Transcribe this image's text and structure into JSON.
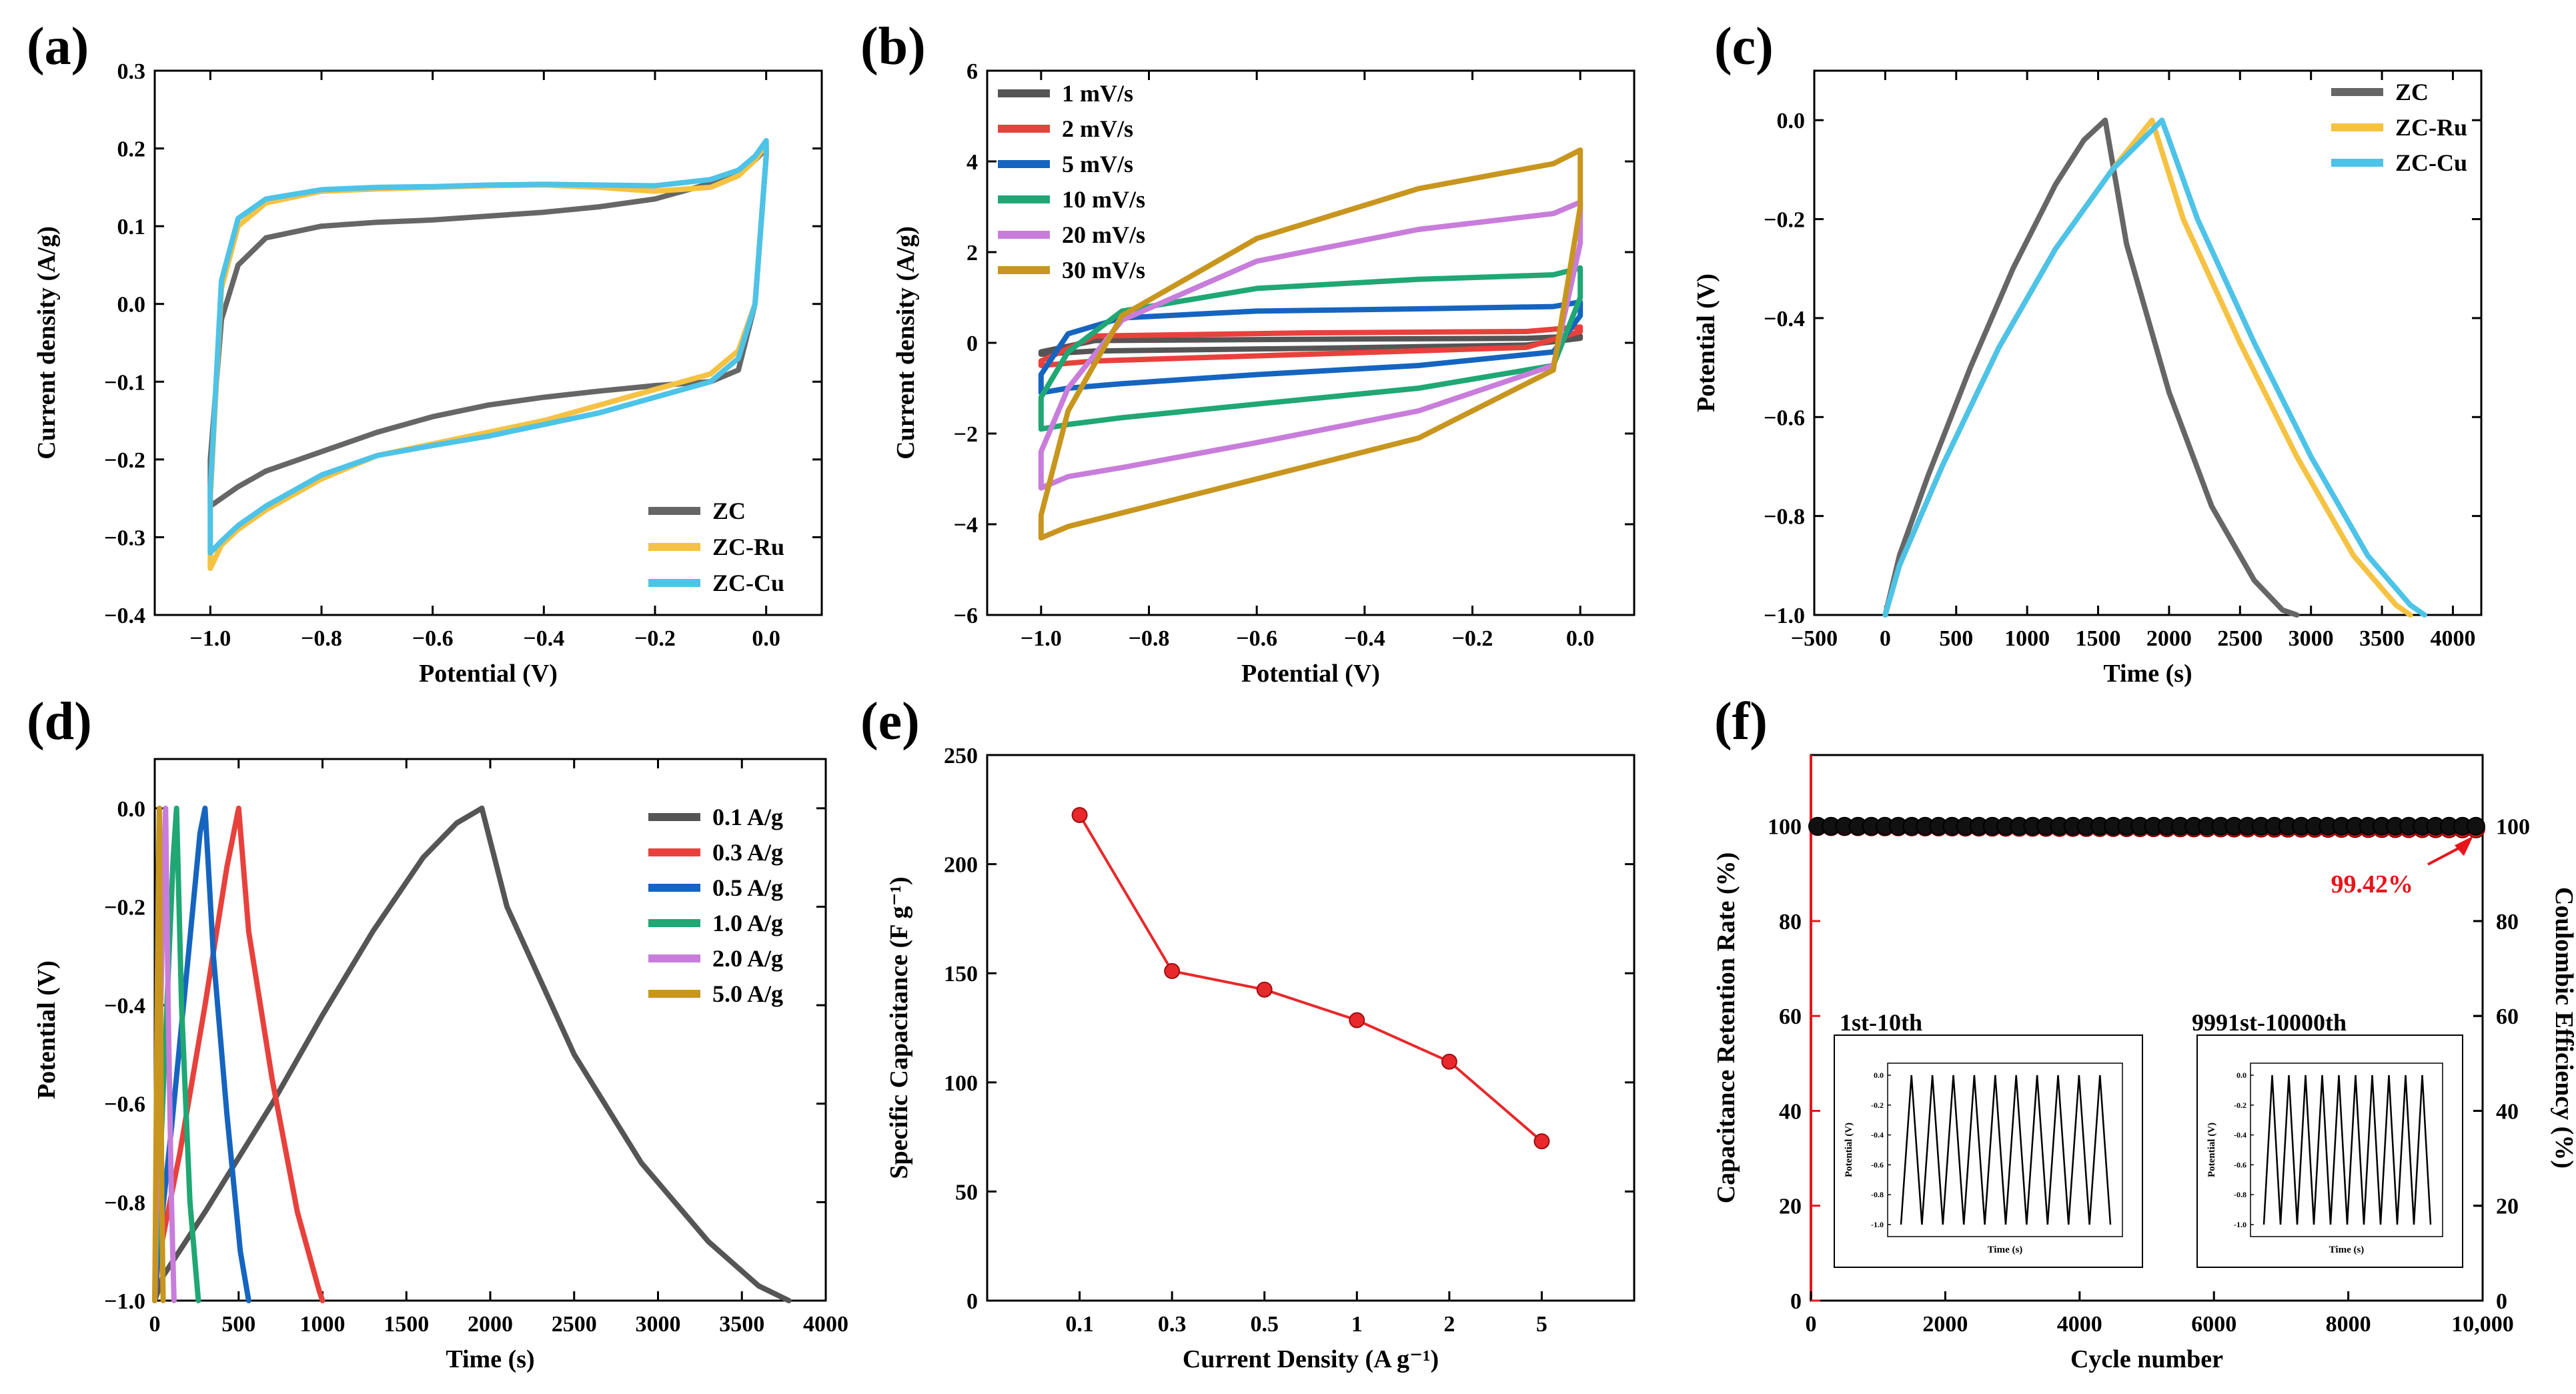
{
  "chart_data": [
    {
      "panel": "(a)",
      "type": "line",
      "xlabel": "Potential (V)",
      "ylabel": "Current density (A/g)",
      "xlim": [
        -1.1,
        0.1
      ],
      "ylim": [
        -0.4,
        0.3
      ],
      "xticks": [
        -1.0,
        -0.8,
        -0.6,
        -0.4,
        -0.2,
        0.0
      ],
      "xtick_labels": [
        "−1.0",
        "−0.8",
        "−0.6",
        "−0.4",
        "−0.2",
        "0.0"
      ],
      "yticks": [
        -0.4,
        -0.3,
        -0.2,
        -0.1,
        0.0,
        0.1,
        0.2,
        0.3
      ],
      "ytick_labels": [
        "−0.4",
        "−0.3",
        "−0.2",
        "−0.1",
        "0.0",
        "0.1",
        "0.2",
        "0.3"
      ],
      "legend_position": "bottom-right",
      "series": [
        {
          "name": "ZC",
          "color": "#666666",
          "x": [
            -1.0,
            -0.98,
            -0.95,
            -0.9,
            -0.8,
            -0.7,
            -0.6,
            -0.5,
            -0.4,
            -0.3,
            -0.2,
            -0.1,
            -0.05,
            -0.02,
            0.0,
            0.0,
            -0.02,
            -0.05,
            -0.1,
            -0.2,
            -0.3,
            -0.4,
            -0.5,
            -0.6,
            -0.7,
            -0.8,
            -0.9,
            -0.95,
            -0.98,
            -1.0,
            -1.0
          ],
          "y": [
            -0.2,
            -0.02,
            0.05,
            0.085,
            0.1,
            0.105,
            0.108,
            0.113,
            0.118,
            0.125,
            0.135,
            0.155,
            0.17,
            0.185,
            0.2,
            0.19,
            0.0,
            -0.085,
            -0.1,
            -0.105,
            -0.112,
            -0.12,
            -0.13,
            -0.145,
            -0.165,
            -0.19,
            -0.215,
            -0.235,
            -0.25,
            -0.26,
            -0.2
          ]
        },
        {
          "name": "ZC-Ru",
          "color": "#F5C242",
          "x": [
            -1.0,
            -0.98,
            -0.95,
            -0.9,
            -0.8,
            -0.7,
            -0.6,
            -0.5,
            -0.4,
            -0.3,
            -0.2,
            -0.1,
            -0.05,
            -0.02,
            0.0,
            0.0,
            -0.02,
            -0.05,
            -0.1,
            -0.2,
            -0.3,
            -0.4,
            -0.5,
            -0.6,
            -0.7,
            -0.8,
            -0.9,
            -0.95,
            -0.98,
            -1.0,
            -1.0
          ],
          "y": [
            -0.25,
            0.02,
            0.1,
            0.13,
            0.145,
            0.148,
            0.15,
            0.152,
            0.153,
            0.15,
            0.145,
            0.15,
            0.165,
            0.185,
            0.205,
            0.19,
            0.0,
            -0.06,
            -0.09,
            -0.11,
            -0.13,
            -0.15,
            -0.165,
            -0.18,
            -0.195,
            -0.225,
            -0.265,
            -0.29,
            -0.31,
            -0.34,
            -0.25
          ]
        },
        {
          "name": "ZC-Cu",
          "color": "#4DC3E8",
          "x": [
            -1.0,
            -0.98,
            -0.95,
            -0.9,
            -0.8,
            -0.7,
            -0.6,
            -0.5,
            -0.4,
            -0.3,
            -0.2,
            -0.1,
            -0.05,
            -0.02,
            0.0,
            0.0,
            -0.02,
            -0.05,
            -0.1,
            -0.2,
            -0.3,
            -0.4,
            -0.5,
            -0.6,
            -0.7,
            -0.8,
            -0.9,
            -0.95,
            -0.98,
            -1.0,
            -1.0
          ],
          "y": [
            -0.24,
            0.03,
            0.11,
            0.135,
            0.147,
            0.15,
            0.151,
            0.153,
            0.154,
            0.153,
            0.152,
            0.16,
            0.172,
            0.19,
            0.21,
            0.19,
            0.0,
            -0.07,
            -0.1,
            -0.12,
            -0.14,
            -0.155,
            -0.17,
            -0.182,
            -0.195,
            -0.22,
            -0.26,
            -0.285,
            -0.305,
            -0.32,
            -0.24
          ]
        }
      ]
    },
    {
      "panel": "(b)",
      "type": "line",
      "xlabel": "Potential (V)",
      "ylabel": "Current density (A/g)",
      "xlim": [
        -1.1,
        0.1
      ],
      "ylim": [
        -6,
        6
      ],
      "xticks": [
        -1.0,
        -0.8,
        -0.6,
        -0.4,
        -0.2,
        0.0
      ],
      "xtick_labels": [
        "−1.0",
        "−0.8",
        "−0.6",
        "−0.4",
        "−0.2",
        "0.0"
      ],
      "yticks": [
        -6,
        -4,
        -2,
        0,
        2,
        4,
        6
      ],
      "ytick_labels": [
        "−6",
        "−4",
        "−2",
        "0",
        "2",
        "4",
        "6"
      ],
      "legend_position": "top-left",
      "series": [
        {
          "name": "1 mV/s",
          "color": "#555555",
          "x": [
            -1.0,
            -0.9,
            -0.5,
            -0.1,
            0.0,
            0.0,
            -0.1,
            -0.5,
            -0.9,
            -1.0,
            -1.0
          ],
          "y": [
            -0.2,
            0.05,
            0.08,
            0.1,
            0.15,
            0.1,
            -0.05,
            -0.12,
            -0.18,
            -0.25,
            -0.2
          ]
        },
        {
          "name": "2 mV/s",
          "color": "#E8413C",
          "x": [
            -1.0,
            -0.9,
            -0.5,
            -0.1,
            0.0,
            0.0,
            -0.1,
            -0.5,
            -0.9,
            -1.0,
            -1.0
          ],
          "y": [
            -0.4,
            0.15,
            0.22,
            0.25,
            0.35,
            0.25,
            -0.1,
            -0.25,
            -0.4,
            -0.5,
            -0.4
          ]
        },
        {
          "name": "5 mV/s",
          "color": "#1565C0",
          "x": [
            -1.0,
            -0.95,
            -0.85,
            -0.6,
            -0.3,
            -0.05,
            0.0,
            0.0,
            -0.05,
            -0.3,
            -0.6,
            -0.85,
            -0.95,
            -1.0,
            -1.0
          ],
          "y": [
            -0.7,
            0.2,
            0.55,
            0.7,
            0.75,
            0.8,
            0.9,
            0.6,
            -0.2,
            -0.5,
            -0.7,
            -0.9,
            -1.0,
            -1.1,
            -0.7
          ]
        },
        {
          "name": "10 mV/s",
          "color": "#1FA774",
          "x": [
            -1.0,
            -0.95,
            -0.85,
            -0.6,
            -0.3,
            -0.05,
            0.0,
            0.0,
            -0.05,
            -0.3,
            -0.6,
            -0.85,
            -0.95,
            -1.0,
            -1.0
          ],
          "y": [
            -1.2,
            -0.2,
            0.7,
            1.2,
            1.4,
            1.5,
            1.65,
            1.0,
            -0.5,
            -1.0,
            -1.35,
            -1.65,
            -1.8,
            -1.9,
            -1.2
          ]
        },
        {
          "name": "20 mV/s",
          "color": "#C87DDB",
          "x": [
            -1.0,
            -0.95,
            -0.85,
            -0.6,
            -0.3,
            -0.05,
            0.0,
            0.0,
            -0.05,
            -0.3,
            -0.6,
            -0.85,
            -0.95,
            -1.0,
            -1.0
          ],
          "y": [
            -2.4,
            -1.0,
            0.5,
            1.8,
            2.5,
            2.85,
            3.1,
            2.2,
            -0.5,
            -1.5,
            -2.2,
            -2.75,
            -2.95,
            -3.2,
            -2.4
          ]
        },
        {
          "name": "30 mV/s",
          "color": "#C8961E",
          "x": [
            -1.0,
            -0.95,
            -0.85,
            -0.6,
            -0.3,
            -0.05,
            0.0,
            0.0,
            -0.05,
            -0.3,
            -0.6,
            -0.85,
            -0.95,
            -1.0,
            -1.0
          ],
          "y": [
            -3.8,
            -1.5,
            0.6,
            2.3,
            3.4,
            3.95,
            4.25,
            3.0,
            -0.6,
            -2.1,
            -3.0,
            -3.75,
            -4.05,
            -4.3,
            -3.8
          ]
        }
      ]
    },
    {
      "panel": "(c)",
      "type": "line",
      "xlabel": "Time (s)",
      "ylabel": "Potential (V)",
      "xlim": [
        -500,
        4200
      ],
      "ylim": [
        -1.0,
        0.1
      ],
      "xticks": [
        -500,
        0,
        500,
        1000,
        1500,
        2000,
        2500,
        3000,
        3500,
        4000
      ],
      "xtick_labels": [
        "−500",
        "0",
        "500",
        "1000",
        "1500",
        "2000",
        "2500",
        "3000",
        "3500",
        "4000"
      ],
      "yticks": [
        -1.0,
        -0.8,
        -0.6,
        -0.4,
        -0.2,
        0.0
      ],
      "ytick_labels": [
        "−1.0",
        "−0.8",
        "−0.6",
        "−0.4",
        "−0.2",
        "0.0"
      ],
      "legend_position": "top-right",
      "series": [
        {
          "name": "ZC",
          "color": "#666666",
          "x": [
            0,
            100,
            300,
            600,
            900,
            1200,
            1400,
            1550,
            1700,
            2000,
            2300,
            2600,
            2800,
            2900
          ],
          "y": [
            -1.0,
            -0.88,
            -0.72,
            -0.5,
            -0.3,
            -0.13,
            -0.04,
            0.0,
            -0.25,
            -0.55,
            -0.78,
            -0.93,
            -0.99,
            -1.0
          ]
        },
        {
          "name": "ZC-Ru",
          "color": "#F5C242",
          "x": [
            0,
            100,
            400,
            800,
            1200,
            1600,
            1880,
            2100,
            2500,
            2900,
            3300,
            3600,
            3700
          ],
          "y": [
            -1.0,
            -0.9,
            -0.7,
            -0.46,
            -0.26,
            -0.1,
            0.0,
            -0.2,
            -0.45,
            -0.68,
            -0.88,
            -0.98,
            -1.0
          ]
        },
        {
          "name": "ZC-Cu",
          "color": "#4DC3E8",
          "x": [
            0,
            100,
            400,
            800,
            1200,
            1600,
            1950,
            2200,
            2600,
            3000,
            3400,
            3700,
            3800
          ],
          "y": [
            -1.0,
            -0.9,
            -0.7,
            -0.46,
            -0.26,
            -0.1,
            0.0,
            -0.2,
            -0.45,
            -0.68,
            -0.88,
            -0.98,
            -1.0
          ]
        }
      ]
    },
    {
      "panel": "(d)",
      "type": "line",
      "xlabel": "Time (s)",
      "ylabel": "Potential (V)",
      "xlim": [
        0,
        4000
      ],
      "ylim": [
        -1.0,
        0.1
      ],
      "xticks": [
        0,
        500,
        1000,
        1500,
        2000,
        2500,
        3000,
        3500,
        4000
      ],
      "xtick_labels": [
        "0",
        "500",
        "1000",
        "1500",
        "2000",
        "2500",
        "3000",
        "3500",
        "4000"
      ],
      "yticks": [
        -1.0,
        -0.8,
        -0.6,
        -0.4,
        -0.2,
        0.0
      ],
      "ytick_labels": [
        "−1.0",
        "−0.8",
        "−0.6",
        "−0.4",
        "−0.2",
        "0.0"
      ],
      "legend_position": "top-right",
      "series": [
        {
          "name": "0.1 A/g",
          "color": "#555555",
          "x": [
            0,
            50,
            300,
            700,
            1000,
            1300,
            1600,
            1800,
            1950,
            2100,
            2500,
            2900,
            3300,
            3600,
            3780
          ],
          "y": [
            -1.0,
            -0.95,
            -0.82,
            -0.6,
            -0.42,
            -0.25,
            -0.1,
            -0.03,
            0.0,
            -0.2,
            -0.5,
            -0.72,
            -0.88,
            -0.97,
            -1.0
          ]
        },
        {
          "name": "0.3 A/g",
          "color": "#E8413C",
          "x": [
            0,
            20,
            150,
            300,
            430,
            500,
            560,
            700,
            850,
            980,
            1000
          ],
          "y": [
            -1.0,
            -0.92,
            -0.7,
            -0.4,
            -0.12,
            0.0,
            -0.25,
            -0.55,
            -0.82,
            -0.98,
            -1.0
          ]
        },
        {
          "name": "0.5 A/g",
          "color": "#1565C0",
          "x": [
            0,
            15,
            100,
            200,
            270,
            300,
            350,
            430,
            510,
            560
          ],
          "y": [
            -1.0,
            -0.92,
            -0.65,
            -0.3,
            -0.05,
            0.0,
            -0.3,
            -0.62,
            -0.9,
            -1.0
          ]
        },
        {
          "name": "1.0 A/g",
          "color": "#1FA774",
          "x": [
            0,
            10,
            60,
            110,
            130,
            160,
            210,
            260
          ],
          "y": [
            -1.0,
            -0.9,
            -0.5,
            -0.1,
            0.0,
            -0.4,
            -0.8,
            -1.0
          ]
        },
        {
          "name": "2.0 A/g",
          "color": "#C87DDB",
          "x": [
            0,
            5,
            30,
            55,
            65,
            80,
            100,
            115
          ],
          "y": [
            -1.0,
            -0.9,
            -0.5,
            -0.1,
            0.0,
            -0.4,
            -0.8,
            -1.0
          ]
        },
        {
          "name": "5.0 A/g",
          "color": "#C8961E",
          "x": [
            0,
            3,
            12,
            22,
            28,
            34,
            42,
            50
          ],
          "y": [
            -1.0,
            -0.88,
            -0.5,
            -0.12,
            0.0,
            -0.4,
            -0.8,
            -1.0
          ]
        }
      ]
    },
    {
      "panel": "(e)",
      "type": "line",
      "xlabel": "Current Density (A g⁻¹)",
      "ylabel": "Specific Capacitance (F g⁻¹)",
      "ylim": [
        0,
        250
      ],
      "yticks": [
        0,
        50,
        100,
        150,
        200,
        250
      ],
      "ytick_labels": [
        "0",
        "50",
        "100",
        "150",
        "200",
        "250"
      ],
      "categories": [
        "0.1",
        "0.3",
        "0.5",
        "1",
        "2",
        "5"
      ],
      "series": [
        {
          "name": "Specific Capacitance",
          "color": "#E8282B",
          "values": [
            222.5,
            151,
            142.5,
            128.5,
            109.5,
            73
          ]
        }
      ]
    },
    {
      "panel": "(f)",
      "type": "scatter",
      "xlabel": "Cycle number",
      "ylabel_left": "Capacitance Retention Rate (%)",
      "ylabel_right": "Coulombic Efficiency (%)",
      "xlim": [
        0,
        10000
      ],
      "ylim_left": [
        0,
        115
      ],
      "ylim_right": [
        0,
        115
      ],
      "xticks": [
        0,
        2000,
        4000,
        6000,
        8000,
        10000
      ],
      "xtick_labels": [
        "0",
        "2000",
        "4000",
        "6000",
        "8000",
        "10,000"
      ],
      "yticks_left": [
        0,
        20,
        40,
        60,
        80,
        100
      ],
      "ytick_labels_left": [
        "0",
        "20",
        "40",
        "60",
        "80",
        "100"
      ],
      "yticks_right": [
        0,
        20,
        40,
        60,
        80,
        100
      ],
      "ytick_labels_right": [
        "0",
        "20",
        "40",
        "60",
        "80",
        "100"
      ],
      "left_axis_color": "#E8141B",
      "annotation": "99.42%",
      "annotation_color": "#E8141B",
      "series": [
        {
          "name": "Capacitance Retention Rate",
          "color": "#E8141B",
          "axis": "left",
          "x_start": 100,
          "x_end": 9900,
          "count": 50,
          "value_start": 99.9,
          "value_end": 99.42
        },
        {
          "name": "Coulombic Efficiency",
          "color": "#111111",
          "axis": "right",
          "x_start": 100,
          "x_end": 9900,
          "count": 50,
          "value_start": 100,
          "value_end": 100
        }
      ],
      "insets": [
        {
          "title": "1st-10th",
          "xlabel": "Time (s)",
          "ylabel": "Potential (V)",
          "yticks": [
            0.0,
            -0.2,
            -0.4,
            -0.6,
            -0.8,
            -1.0
          ],
          "ytick_labels": [
            "0.0",
            "-0.2",
            "-0.4",
            "-0.6",
            "-0.8",
            "-1.0"
          ],
          "cycles": 10,
          "color": "#000000"
        },
        {
          "title": "9991st-10000th",
          "xlabel": "Time (s)",
          "ylabel": "Potential (V)",
          "yticks": [
            0.0,
            -0.2,
            -0.4,
            -0.6,
            -0.8,
            -1.0
          ],
          "ytick_labels": [
            "0.0",
            "-0.2",
            "-0.4",
            "-0.6",
            "-0.8",
            "-1.0"
          ],
          "cycles": 10,
          "color": "#000000"
        }
      ]
    }
  ]
}
